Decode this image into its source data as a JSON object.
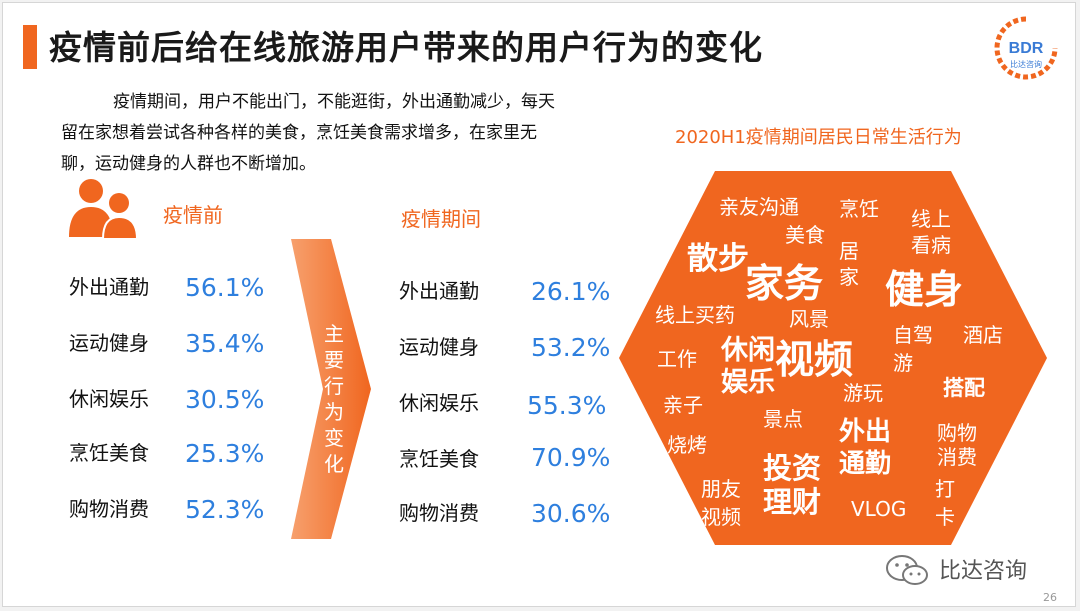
{
  "title": "疫情前后给在线旅游用户带来的用户行为的变化",
  "logo": {
    "text": "BDR",
    "subtext": "比达咨询",
    "accent": "#f0661f",
    "blue": "#3a7bd5"
  },
  "intro": [
    "疫情期间，用户不能出门，不能逛街，外出通勤减少，每天",
    "留在家想着尝试各种各样的美食，烹饪美食需求增多，在家里无",
    "聊，运动健身的人群也不断增加。"
  ],
  "icons": {
    "people": "people-icon",
    "arrow": "arrow-icon",
    "wechat": "wechat-icon"
  },
  "before": {
    "heading": "疫情前",
    "rows": [
      {
        "label": "外出通勤",
        "value": "56.1%"
      },
      {
        "label": "运动健身",
        "value": "35.4%"
      },
      {
        "label": "休闲娱乐",
        "value": "30.5%"
      },
      {
        "label": "烹饪美食",
        "value": "25.3%"
      },
      {
        "label": "购物消费",
        "value": "52.3%"
      }
    ]
  },
  "arrow_label": [
    "主",
    "要",
    "行",
    "为",
    "变",
    "化"
  ],
  "during": {
    "heading": "疫情期间",
    "rows": [
      {
        "label": "外出通勤",
        "value": "26.1%"
      },
      {
        "label": "运动健身",
        "value": "53.2%"
      },
      {
        "label": "休闲娱乐",
        "value": "55.3%"
      },
      {
        "label": "烹饪美食",
        "value": "70.9%"
      },
      {
        "label": "购物消费",
        "value": "30.6%"
      }
    ]
  },
  "cloud": {
    "title": "2020H1疫情期间居民日常生活行为",
    "color": "#f0661f",
    "words": [
      "亲友沟通",
      "烹饪",
      "线上",
      "看病",
      "美食",
      "散步",
      "居",
      "家",
      "家务",
      "健身",
      "线上买药",
      "风景",
      "自驾",
      "游",
      "酒店",
      "工作",
      "休闲",
      "娱乐",
      "视频",
      "游玩",
      "搭配",
      "亲子",
      "景点",
      "外出",
      "通勤",
      "购物",
      "消费",
      "烧烤",
      "投资",
      "理财",
      "朋友",
      "视频",
      "VLOG",
      "打",
      "卡"
    ]
  },
  "footer": {
    "wechat": "比达咨询",
    "page": "26"
  }
}
